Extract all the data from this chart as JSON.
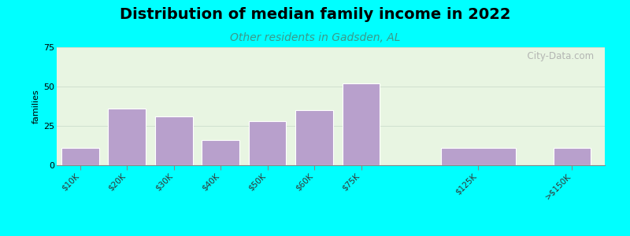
{
  "title": "Distribution of median family income in 2022",
  "subtitle": "Other residents in Gadsden, AL",
  "ylabel": "families",
  "background_color": "#00FFFF",
  "plot_bg_color": "#e8f5e2",
  "bar_color": "#b8a0cc",
  "bar_edge_color": "#ffffff",
  "bar_labels": [
    "$10K",
    "$20K",
    "$30K",
    "$40K",
    "$50K",
    "$60K",
    "$75K",
    "$125K",
    ">$150K"
  ],
  "bar_values": [
    11,
    36,
    31,
    16,
    28,
    35,
    52,
    11,
    11
  ],
  "bar_positions": [
    0,
    1,
    2,
    3,
    4,
    5,
    6,
    8.5,
    10.5
  ],
  "bar_widths": [
    0.8,
    0.8,
    0.8,
    0.8,
    0.8,
    0.8,
    0.8,
    1.6,
    0.8
  ],
  "xlim": [
    -0.5,
    11.2
  ],
  "ylim": [
    0,
    75
  ],
  "yticks": [
    0,
    25,
    50,
    75
  ],
  "title_fontsize": 14,
  "subtitle_fontsize": 10,
  "ylabel_fontsize": 8,
  "xtick_fontsize": 7.5,
  "watermark": "  City-Data.com"
}
